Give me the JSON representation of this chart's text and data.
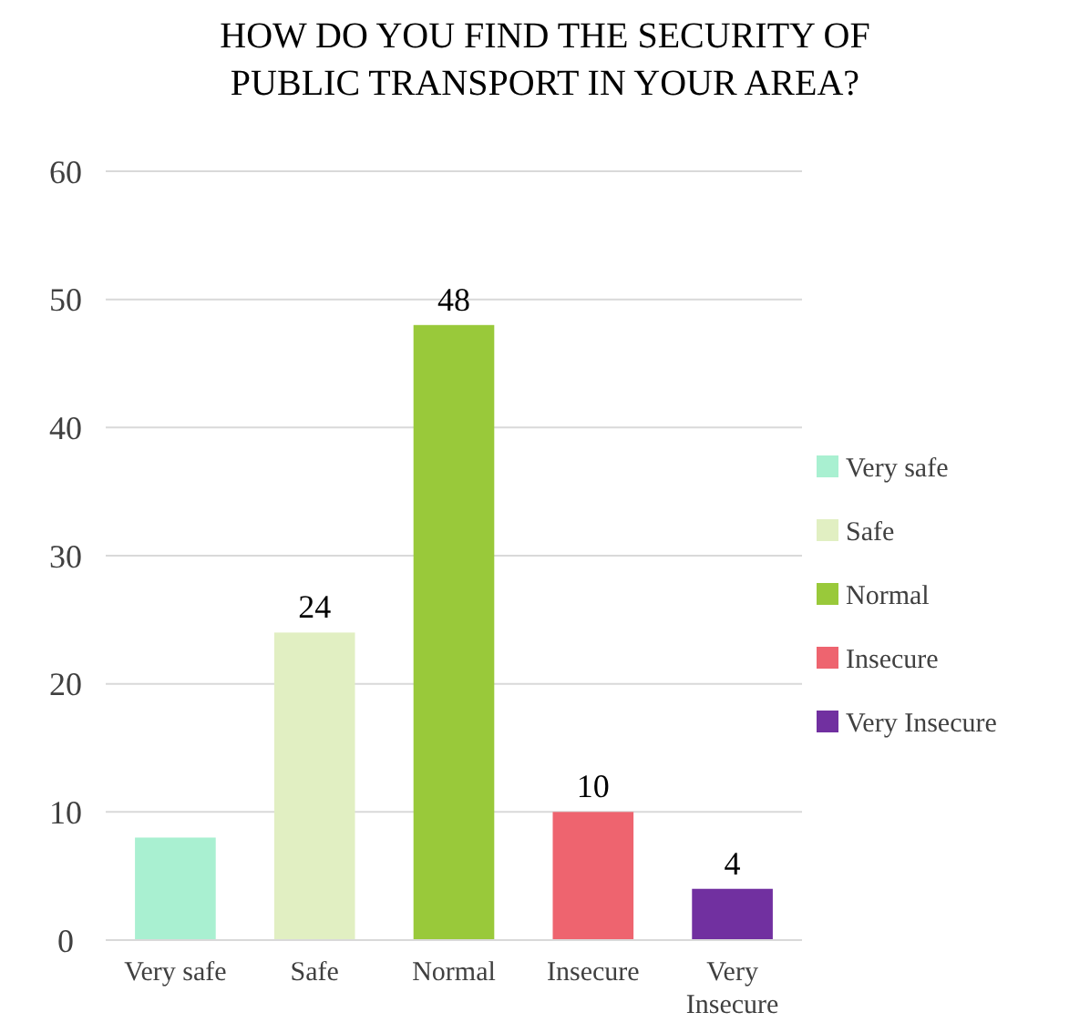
{
  "chart_data": {
    "type": "bar",
    "title": "HOW DO YOU FIND THE SECURITY OF PUBLIC TRANSPORT IN YOUR AREA?",
    "categories": [
      "Very safe",
      "Safe",
      "Normal",
      "Insecure",
      "Very Insecure"
    ],
    "series": [
      {
        "name": "Very safe",
        "color": "#a9f0d1",
        "values": [
          8,
          null,
          null,
          null,
          null
        ]
      },
      {
        "name": "Safe",
        "color": "#e1efc2",
        "values": [
          null,
          24,
          null,
          null,
          null
        ],
        "value_labels": [
          null,
          "24",
          null,
          null,
          null
        ]
      },
      {
        "name": "Normal",
        "color": "#99c93a",
        "values": [
          null,
          null,
          48,
          null,
          null
        ],
        "value_labels": [
          null,
          null,
          "48",
          null,
          null
        ]
      },
      {
        "name": "Insecure",
        "color": "#ee646f",
        "values": [
          null,
          null,
          null,
          10,
          null
        ],
        "value_labels": [
          null,
          null,
          null,
          "10",
          null
        ]
      },
      {
        "name": "Very Insecure",
        "color": "#7130a0",
        "values": [
          null,
          null,
          null,
          null,
          4
        ],
        "value_labels": [
          null,
          null,
          null,
          null,
          "4"
        ]
      }
    ],
    "ylim": [
      0,
      60
    ],
    "yticks": [
      0,
      10,
      20,
      30,
      40,
      50,
      60
    ],
    "grid": "y",
    "legend": "right"
  }
}
